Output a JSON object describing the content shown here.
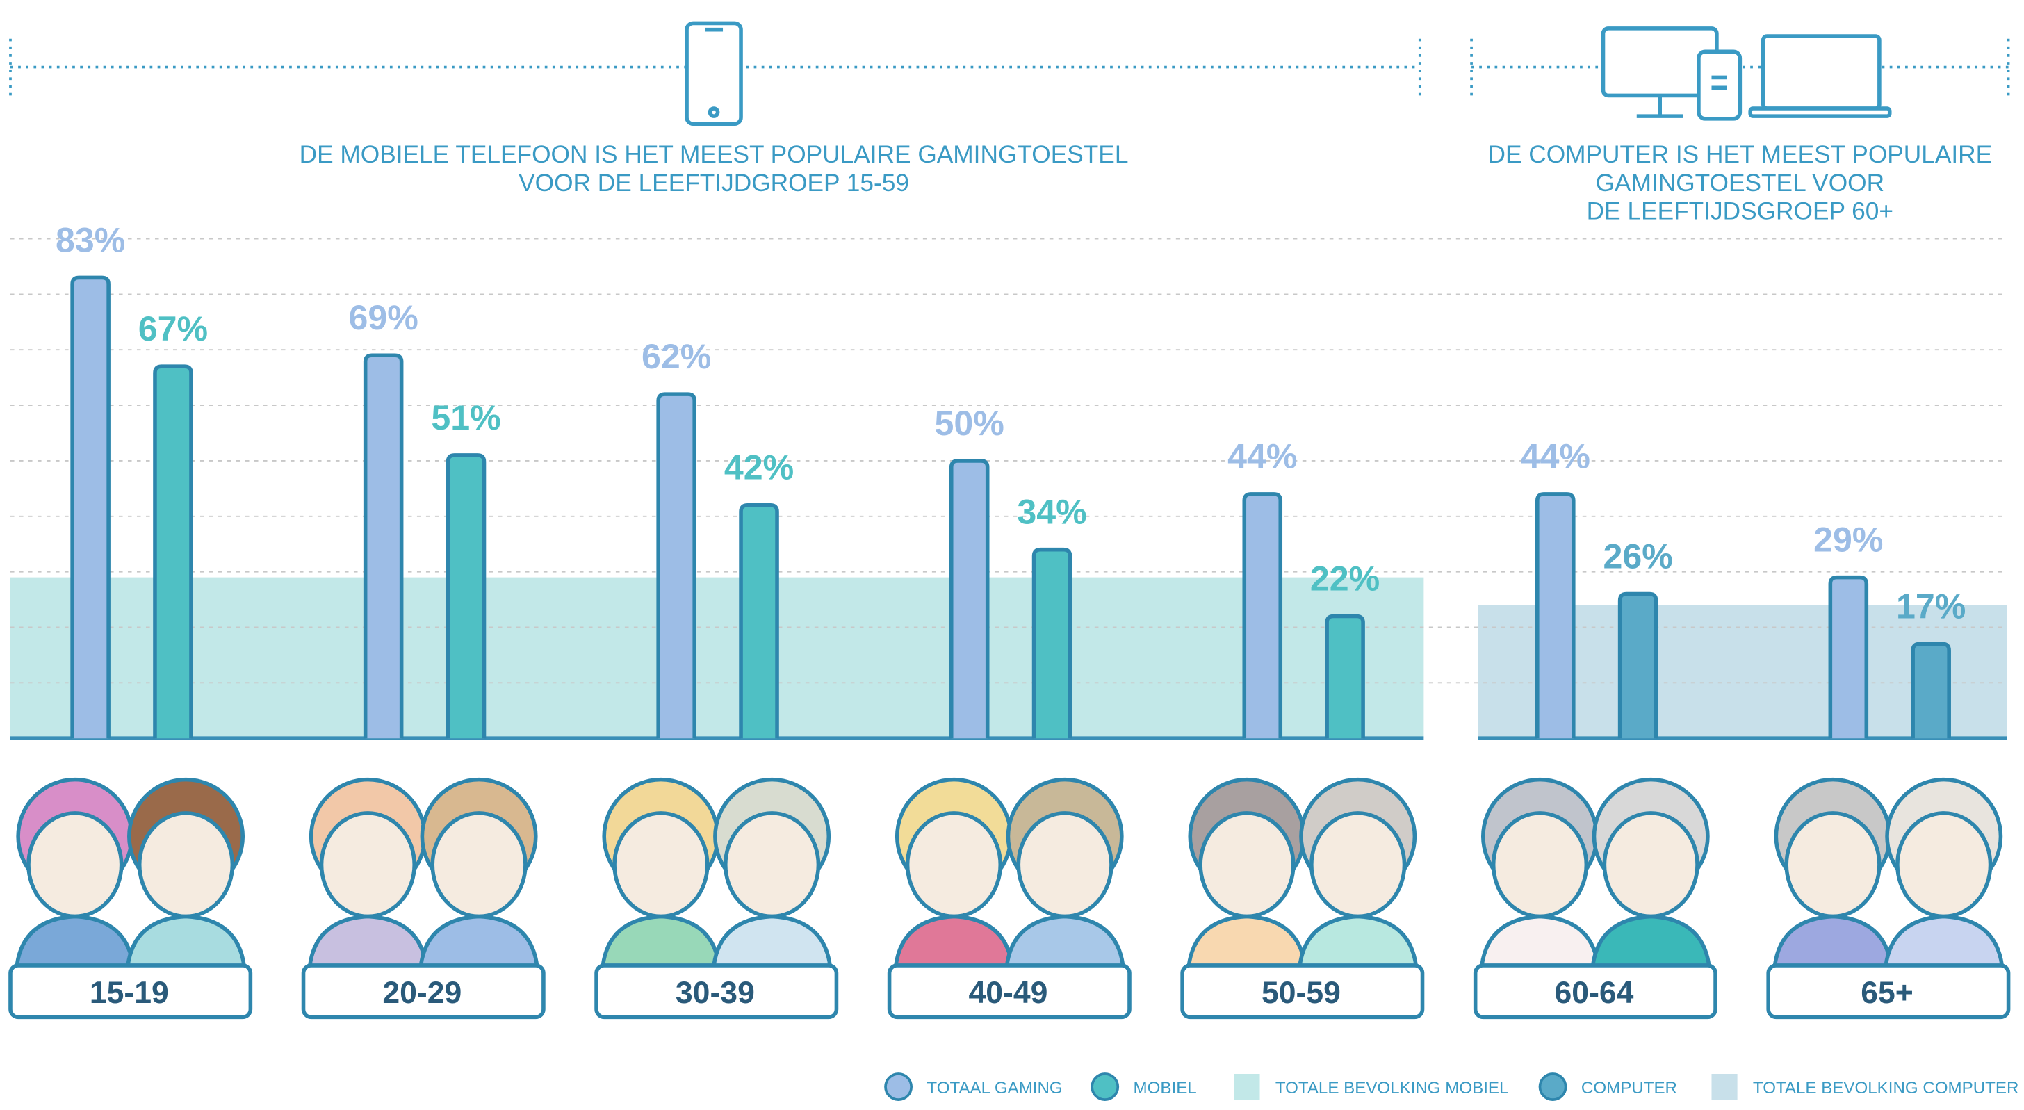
{
  "chart_data": {
    "type": "bar",
    "headings": [
      [
        "DE MOBIELE TELEFOON IS HET MEEST POPULAIRE GAMINGTOESTEL",
        "VOOR DE LEEFTIJDGROEP 15-59"
      ],
      [
        "DE COMPUTER IS HET MEEST POPULAIRE",
        "GAMINGTOESTEL VOOR",
        "DE LEEFTIJDSGROEP 60+"
      ]
    ],
    "categories": [
      "15-19",
      "20-29",
      "30-39",
      "40-49",
      "50-59",
      "60-64",
      "65+"
    ],
    "series": [
      {
        "name": "TOTAAL GAMING",
        "color": "#9dbde6",
        "values": [
          83,
          69,
          62,
          50,
          44,
          44,
          29
        ],
        "value_labels": [
          "83%",
          "69%",
          "62%",
          "50%",
          "44%",
          "44%",
          "29%"
        ]
      },
      {
        "name": "MOBIEL",
        "color": "#4fc0c4",
        "values": [
          67,
          51,
          42,
          34,
          22,
          null,
          null
        ],
        "value_labels": [
          "67%",
          "51%",
          "42%",
          "34%",
          "22%",
          null,
          null
        ]
      },
      {
        "name": "COMPUTER",
        "color": "#5aaac8",
        "values": [
          null,
          null,
          null,
          null,
          null,
          26,
          17
        ],
        "value_labels": [
          null,
          null,
          null,
          null,
          null,
          "26%",
          "17%"
        ]
      }
    ],
    "bands": [
      {
        "name": "TOTALE BEVOLKING MOBIEL",
        "color": "#c2e8e8",
        "value": 29
      },
      {
        "name": "TOTALE BEVOLKING COMPUTER",
        "color": "#c8e0ea",
        "value": 24
      }
    ],
    "ylim": [
      0,
      90
    ],
    "grid_lines": [
      10,
      20,
      30,
      40,
      50,
      60,
      70,
      80,
      90
    ],
    "grid": true
  }
}
